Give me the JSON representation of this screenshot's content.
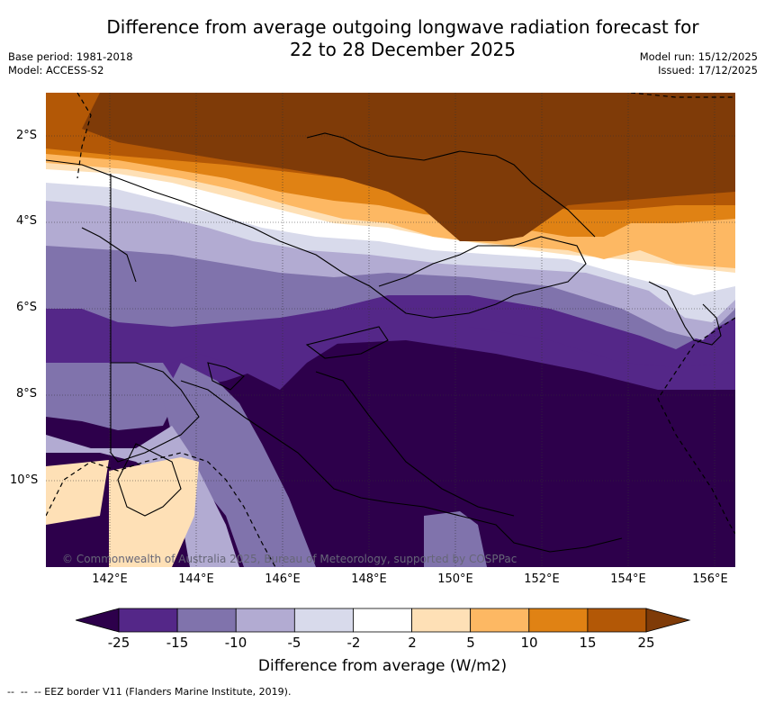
{
  "title_line1": "Difference from average outgoing longwave radiation forecast for",
  "title_line2": "22 to 28 December 2025",
  "meta_left": {
    "base_period": "Base period: 1981-2018",
    "model": "Model: ACCESS-S2"
  },
  "meta_right": {
    "model_run": "Model run: 15/12/2025",
    "issued": "Issued: 17/12/2025"
  },
  "lat_ticks": [
    "2°S",
    "4°S",
    "6°S",
    "8°S",
    "10°S"
  ],
  "lon_ticks": [
    "142°E",
    "144°E",
    "146°E",
    "148°E",
    "150°E",
    "152°E",
    "154°E",
    "156°E"
  ],
  "copyright": "© Commonwealth of Australia 2025, Bureau of Meteorology, supported by COSPPac",
  "colorbar": {
    "labels": [
      "-25",
      "-15",
      "-10",
      "-5",
      "-2",
      "2",
      "5",
      "10",
      "15",
      "25"
    ],
    "colors": [
      "#2d004b",
      "#542788",
      "#8073ac",
      "#b2abd2",
      "#d8daeb",
      "#ffffff",
      "#fee0b6",
      "#fdb863",
      "#e08214",
      "#b35806",
      "#7f3b08"
    ],
    "title": "Difference from average (W/m2)"
  },
  "legend_text": "-- EEZ border V11 (Flanders Marine Institute, 2019)."
}
